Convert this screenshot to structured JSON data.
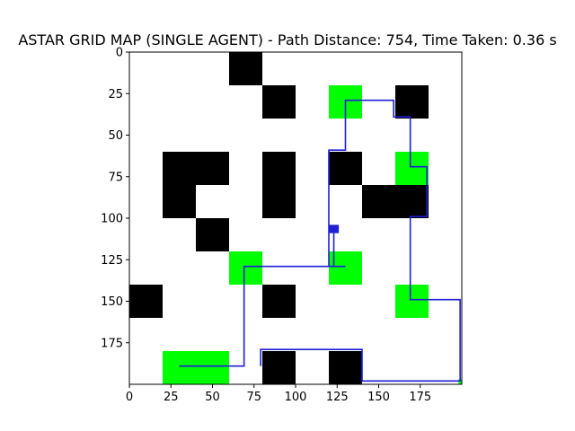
{
  "chart_data": {
    "type": "heatmap",
    "title": "ASTAR GRID MAP (SINGLE AGENT) - Path Distance: 754, Time Taken: 0.36 s",
    "xlabel": "",
    "ylabel": "",
    "xlim": [
      0,
      200
    ],
    "ylim": [
      200,
      0
    ],
    "y_inverted": true,
    "grid": false,
    "legend": "none",
    "xticks": [
      0,
      25,
      50,
      75,
      100,
      125,
      150,
      175
    ],
    "yticks": [
      0,
      25,
      50,
      75,
      100,
      125,
      150,
      175
    ],
    "cell_size": 20,
    "colors": {
      "obstacle": "#000000",
      "goal": "#00ff00",
      "path": "#1f1fd6",
      "background": "#ffffff"
    },
    "obstacles": [
      {
        "x": 60,
        "y": 0,
        "w": 20,
        "h": 20
      },
      {
        "x": 80,
        "y": 20,
        "w": 20,
        "h": 20
      },
      {
        "x": 160,
        "y": 20,
        "w": 20,
        "h": 20
      },
      {
        "x": 20,
        "y": 60,
        "w": 40,
        "h": 20
      },
      {
        "x": 20,
        "y": 80,
        "w": 20,
        "h": 20
      },
      {
        "x": 80,
        "y": 60,
        "w": 20,
        "h": 40
      },
      {
        "x": 120,
        "y": 60,
        "w": 20,
        "h": 20
      },
      {
        "x": 140,
        "y": 80,
        "w": 40,
        "h": 20
      },
      {
        "x": 40,
        "y": 100,
        "w": 20,
        "h": 20
      },
      {
        "x": 0,
        "y": 140,
        "w": 20,
        "h": 20
      },
      {
        "x": 80,
        "y": 140,
        "w": 20,
        "h": 20
      },
      {
        "x": 80,
        "y": 180,
        "w": 20,
        "h": 20
      },
      {
        "x": 120,
        "y": 180,
        "w": 20,
        "h": 20
      }
    ],
    "goals": [
      {
        "x": 120,
        "y": 20,
        "w": 20,
        "h": 20
      },
      {
        "x": 160,
        "y": 60,
        "w": 20,
        "h": 20
      },
      {
        "x": 60,
        "y": 120,
        "w": 20,
        "h": 20
      },
      {
        "x": 120,
        "y": 120,
        "w": 20,
        "h": 20
      },
      {
        "x": 160,
        "y": 140,
        "w": 20,
        "h": 20
      },
      {
        "x": 20,
        "y": 180,
        "w": 40,
        "h": 20
      },
      {
        "x": 198,
        "y": 197,
        "w": 2,
        "h": 3
      }
    ],
    "start_marker": {
      "x": 120,
      "y": 104,
      "w": 6,
      "h": 5
    },
    "path": [
      [
        30,
        189
      ],
      [
        69,
        189
      ],
      [
        69,
        129
      ],
      [
        130,
        129
      ],
      [
        120,
        129
      ],
      [
        120,
        59
      ],
      [
        130,
        59
      ],
      [
        130,
        29
      ],
      [
        159,
        29
      ],
      [
        159,
        39
      ],
      [
        169,
        39
      ],
      [
        169,
        69
      ],
      [
        179,
        69
      ],
      [
        179,
        99
      ],
      [
        169,
        99
      ],
      [
        169,
        149
      ],
      [
        199,
        149
      ],
      [
        199,
        198
      ],
      [
        140,
        198
      ],
      [
        140,
        179
      ],
      [
        79,
        179
      ],
      [
        79,
        189
      ]
    ],
    "path_branch": [
      [
        123,
        109
      ],
      [
        123,
        129
      ]
    ]
  }
}
